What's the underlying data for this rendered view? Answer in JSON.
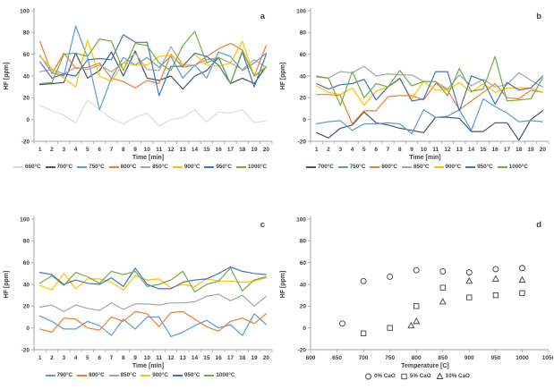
{
  "chart_data": [
    {
      "label": "a",
      "type": "line",
      "xlabel": "Time [min]",
      "ylabel": "HF [ppm]",
      "ylim": [
        -20,
        100
      ],
      "y_ticks": [
        -20,
        0,
        20,
        40,
        60,
        80,
        100
      ],
      "x_ticks": [
        1,
        2,
        3,
        4,
        5,
        6,
        7,
        8,
        9,
        10,
        11,
        12,
        13,
        14,
        15,
        16,
        17,
        18,
        19,
        20
      ],
      "grid": false,
      "legend_position": "bottom",
      "series": [
        {
          "name": "660°C",
          "color": "#dcdcdc",
          "values": [
            13,
            8,
            4,
            -3,
            18,
            9,
            1,
            -4,
            2,
            6,
            -6,
            0,
            2,
            9,
            -2,
            7,
            6,
            9,
            -3,
            -1
          ]
        },
        {
          "name": "700°C",
          "color": "#44546a",
          "values": [
            32,
            33,
            34,
            61,
            38,
            45,
            62,
            40,
            63,
            38,
            36,
            40,
            28,
            40,
            45,
            57,
            33,
            38,
            33,
            49
          ]
        },
        {
          "name": "750°C",
          "color": "#5b9bd5",
          "values": [
            59,
            43,
            40,
            86,
            57,
            9,
            38,
            57,
            50,
            57,
            48,
            58,
            38,
            50,
            38,
            62,
            58,
            45,
            52,
            61
          ]
        },
        {
          "name": "800°C",
          "color": "#ed7d31",
          "values": [
            72,
            42,
            61,
            47,
            48,
            52,
            38,
            35,
            29,
            36,
            33,
            60,
            48,
            50,
            58,
            65,
            70,
            64,
            40,
            68
          ]
        },
        {
          "name": "850°C",
          "color": "#a5a5a5",
          "values": [
            44,
            46,
            42,
            48,
            46,
            50,
            44,
            52,
            61,
            46,
            45,
            67,
            50,
            50,
            55,
            57,
            52,
            46,
            55,
            48
          ]
        },
        {
          "name": "900°C",
          "color": "#ffc000",
          "values": [
            58,
            47,
            38,
            30,
            73,
            40,
            35,
            52,
            50,
            50,
            58,
            59,
            50,
            60,
            50,
            49,
            52,
            72,
            40,
            49
          ]
        },
        {
          "name": "950°C",
          "color": "#4472c4",
          "values": [
            53,
            38,
            42,
            40,
            55,
            56,
            55,
            78,
            71,
            71,
            22,
            49,
            49,
            61,
            58,
            50,
            33,
            62,
            30,
            60
          ]
        },
        {
          "name": "1000°C",
          "color": "#70ad47",
          "values": [
            33,
            34,
            60,
            61,
            58,
            74,
            72,
            45,
            70,
            68,
            52,
            45,
            68,
            81,
            52,
            57,
            33,
            63,
            40,
            48
          ]
        }
      ]
    },
    {
      "label": "b",
      "type": "line",
      "xlabel": "Time [min]",
      "ylabel": "HF [ppm]",
      "ylim": [
        -20,
        100
      ],
      "y_ticks": [
        -20,
        0,
        20,
        40,
        60,
        80,
        100
      ],
      "x_ticks": [
        1,
        2,
        3,
        4,
        5,
        6,
        7,
        8,
        9,
        10,
        11,
        12,
        13,
        14,
        15,
        16,
        17,
        18,
        19,
        20
      ],
      "grid": false,
      "legend_position": "bottom",
      "series": [
        {
          "name": "700°C",
          "color": "#44546a",
          "values": [
            -12,
            -17,
            -8,
            -5,
            7,
            -3,
            -5,
            -8,
            -10,
            -12,
            2,
            2,
            1,
            -11,
            -11,
            -3,
            -3,
            -19,
            0,
            8
          ]
        },
        {
          "name": "750°C",
          "color": "#5b9bd5",
          "values": [
            -4,
            -2,
            -1,
            -10,
            -4,
            -4,
            -3,
            -4,
            -13,
            9,
            2,
            3,
            9,
            -10,
            19,
            12,
            6,
            -2,
            -1,
            -2
          ]
        },
        {
          "name": "800°C",
          "color": "#ed7d31",
          "values": [
            23,
            23,
            22,
            -4,
            8,
            8,
            21,
            22,
            22,
            18,
            33,
            27,
            9,
            17,
            25,
            33,
            20,
            19,
            27,
            25
          ]
        },
        {
          "name": "850°C",
          "color": "#a5a5a5",
          "values": [
            39,
            38,
            44,
            43,
            49,
            40,
            42,
            41,
            41,
            35,
            35,
            28,
            41,
            31,
            37,
            30,
            32,
            43,
            36,
            30
          ]
        },
        {
          "name": "900°C",
          "color": "#ffc000",
          "values": [
            31,
            25,
            23,
            29,
            13,
            26,
            30,
            37,
            19,
            35,
            27,
            27,
            34,
            25,
            33,
            25,
            29,
            29,
            29,
            25
          ]
        },
        {
          "name": "950°C",
          "color": "#4472c4",
          "values": [
            33,
            28,
            32,
            33,
            37,
            18,
            30,
            38,
            17,
            19,
            44,
            44,
            8,
            40,
            36,
            14,
            34,
            27,
            29,
            40
          ]
        },
        {
          "name": "1000°C",
          "color": "#70ad47",
          "values": [
            40,
            38,
            13,
            44,
            20,
            33,
            30,
            45,
            31,
            35,
            35,
            22,
            47,
            26,
            28,
            58,
            17,
            18,
            19,
            38
          ]
        }
      ]
    },
    {
      "label": "c",
      "type": "line",
      "xlabel": "Time [min]",
      "ylabel": "HF [ppm]",
      "ylim": [
        -20,
        100
      ],
      "y_ticks": [
        -20,
        0,
        20,
        40,
        60,
        80,
        100
      ],
      "x_ticks": [
        1,
        2,
        3,
        4,
        5,
        6,
        7,
        8,
        9,
        10,
        11,
        12,
        13,
        14,
        15,
        16,
        17,
        18,
        19,
        20
      ],
      "grid": false,
      "legend_position": "bottom",
      "series": [
        {
          "name": "790°C",
          "color": "#5b9bd5",
          "values": [
            11,
            6,
            -1,
            -1,
            6,
            2,
            -7,
            8,
            -1,
            10,
            10,
            -8,
            -4,
            2,
            7,
            0,
            3,
            -7,
            13,
            3
          ]
        },
        {
          "name": "800°C",
          "color": "#ed7d31",
          "values": [
            -1,
            -4,
            9,
            8,
            0,
            -2,
            10,
            6,
            15,
            13,
            1,
            14,
            15,
            8,
            1,
            -3,
            6,
            9,
            4,
            13
          ]
        },
        {
          "name": "850°C",
          "color": "#a5a5a5",
          "values": [
            19,
            21,
            15,
            21,
            18,
            16,
            23,
            17,
            22,
            22,
            21,
            23,
            23,
            24,
            29,
            31,
            25,
            30,
            20,
            29
          ]
        },
        {
          "name": "900°C",
          "color": "#ffc000",
          "values": [
            39,
            35,
            50,
            36,
            45,
            45,
            42,
            35,
            48,
            44,
            45,
            37,
            40,
            38,
            45,
            43,
            43,
            42,
            43,
            46
          ]
        },
        {
          "name": "950°C",
          "color": "#4472c4",
          "values": [
            51,
            49,
            40,
            44,
            41,
            40,
            46,
            38,
            55,
            40,
            36,
            36,
            42,
            44,
            45,
            50,
            56,
            52,
            50,
            49
          ]
        },
        {
          "name": "1000°C",
          "color": "#70ad47",
          "values": [
            41,
            48,
            39,
            51,
            47,
            41,
            52,
            49,
            52,
            38,
            40,
            44,
            52,
            33,
            40,
            43,
            55,
            34,
            44,
            47
          ]
        }
      ]
    },
    {
      "label": "d",
      "type": "scatter",
      "xlabel": "Temperature [C]",
      "ylabel": "HF [ppm]",
      "xlim": [
        600,
        1050
      ],
      "x_ticks": [
        600,
        650,
        700,
        750,
        800,
        850,
        900,
        950,
        1000,
        1050
      ],
      "ylim": [
        -20,
        100
      ],
      "y_ticks": [
        -20,
        0,
        20,
        40,
        60,
        80,
        100
      ],
      "grid": false,
      "legend_position": "bottom",
      "marker_color": "#404040",
      "series": [
        {
          "name": "0% CaO",
          "marker": "circle",
          "points": [
            [
              660,
              4
            ],
            [
              700,
              43
            ],
            [
              750,
              47
            ],
            [
              800,
              53
            ],
            [
              850,
              52
            ],
            [
              900,
              51
            ],
            [
              950,
              54
            ],
            [
              1000,
              55
            ]
          ]
        },
        {
          "name": "5% CaO",
          "marker": "square",
          "points": [
            [
              700,
              -5
            ],
            [
              750,
              0
            ],
            [
              800,
              20
            ],
            [
              850,
              37
            ],
            [
              900,
              28
            ],
            [
              950,
              30
            ],
            [
              1000,
              32
            ]
          ]
        },
        {
          "name": "10% CaO",
          "marker": "triangle",
          "points": [
            [
              790,
              2
            ],
            [
              800,
              6
            ],
            [
              850,
              24
            ],
            [
              900,
              43
            ],
            [
              950,
              45
            ],
            [
              1000,
              44
            ]
          ]
        }
      ]
    }
  ]
}
